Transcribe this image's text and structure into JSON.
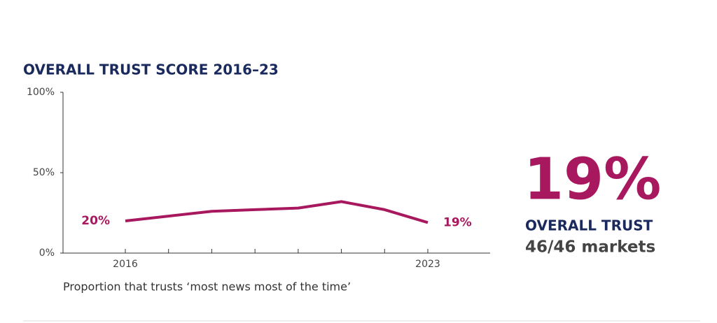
{
  "chart_data": {
    "type": "line",
    "title": "OVERALL TRUST SCORE 2016–23",
    "caption": "Proportion that trusts ‘most news most of the time’",
    "categories": [
      "2016",
      null,
      null,
      null,
      null,
      null,
      null,
      "2023"
    ],
    "series": [
      {
        "name": "Overall trust",
        "color": "#a8185e",
        "values": [
          20,
          23,
          26,
          27,
          28,
          32,
          27,
          19
        ],
        "value_labels": [
          "20%",
          null,
          null,
          null,
          null,
          null,
          null,
          "19%"
        ]
      }
    ],
    "ylim": [
      0,
      100
    ],
    "yticks": [
      {
        "value": 0,
        "label": "0%"
      },
      {
        "value": 50,
        "label": "50%"
      },
      {
        "value": 100,
        "label": "100%"
      }
    ],
    "grid": false,
    "headline": {
      "value": "19%",
      "label": "OVERALL TRUST",
      "detail": "46/46 markets"
    }
  }
}
